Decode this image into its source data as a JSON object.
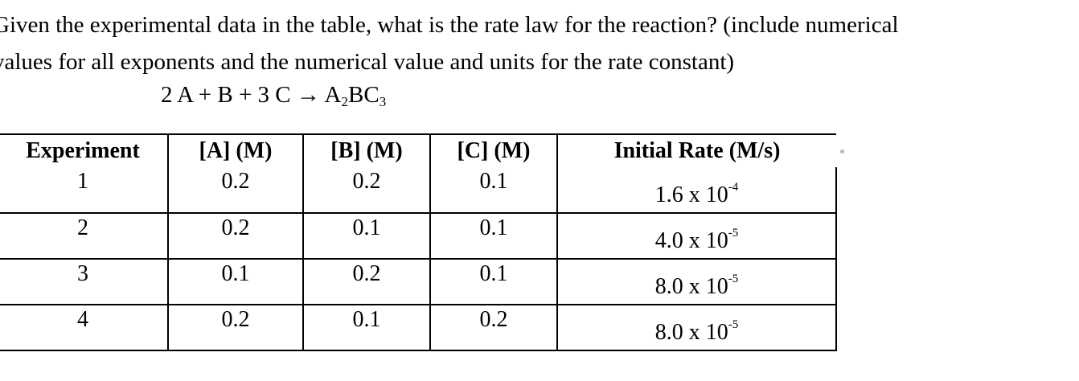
{
  "question": {
    "line1": "Given the experimental data in the table, what is the rate law for the reaction? (include numerical",
    "line2": "values for all exponents and the numerical value and units for the rate constant)"
  },
  "reaction": {
    "reactants": "2 A + B + 3 C",
    "arrow": "→",
    "product_parts": [
      "A",
      "2",
      "BC",
      "3"
    ]
  },
  "table": {
    "headers": [
      "Experiment",
      "[A] (M)",
      "[B] (M)",
      "[C] (M)",
      "Initial Rate (M/s)"
    ],
    "rows": [
      {
        "experiment": "1",
        "a": "0.2",
        "b": "0.2",
        "c": "0.1",
        "rate_mantissa": "1.6 x 10",
        "rate_exponent": "-4"
      },
      {
        "experiment": "2",
        "a": "0.2",
        "b": "0.1",
        "c": "0.1",
        "rate_mantissa": "4.0 x 10",
        "rate_exponent": "-5"
      },
      {
        "experiment": "3",
        "a": "0.1",
        "b": "0.2",
        "c": "0.1",
        "rate_mantissa": "8.0 x 10",
        "rate_exponent": "-5"
      },
      {
        "experiment": "4",
        "a": "0.2",
        "b": "0.1",
        "c": "0.2",
        "rate_mantissa": "8.0 x 10",
        "rate_exponent": "-5"
      }
    ]
  }
}
